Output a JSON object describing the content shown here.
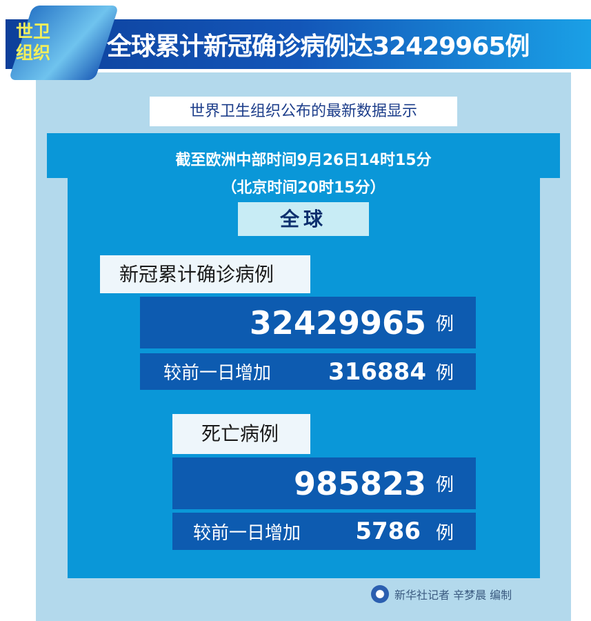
{
  "header": {
    "badge_line1": "世卫",
    "badge_line2": "组织",
    "title": "全球累计新冠确诊病例达32429965例"
  },
  "subtitle": "世界卫生组织公布的最新数据显示",
  "time": {
    "line1": "截至欧洲中部时间9月26日14时15分",
    "line2": "（北京时间20时15分）"
  },
  "region": "全球",
  "cases": {
    "label": "新冠累计确诊病例",
    "total": "32429965",
    "unit": "例",
    "increase_label": "较前一日增加",
    "increase": "316884",
    "increase_unit": "例"
  },
  "deaths": {
    "label": "死亡病例",
    "total": "985823",
    "unit": "例",
    "increase_label": "较前一日增加",
    "increase": "5786",
    "increase_unit": "例"
  },
  "credit": "新华社记者 辛梦晨 编制",
  "colors": {
    "panel_light": "#b3d9ec",
    "panel_mid": "#0a97d8",
    "box_dark": "#0d5bb0",
    "badge_text": "#f4ef5a"
  }
}
